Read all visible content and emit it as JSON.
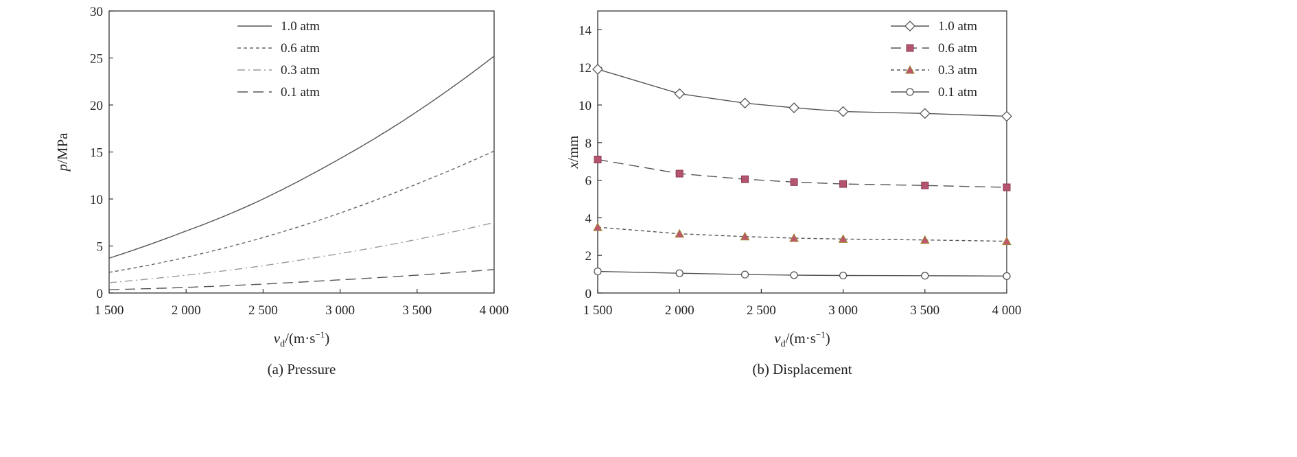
{
  "chart_data": [
    {
      "type": "line",
      "caption": "(a) Pressure",
      "xlabel_var": "v",
      "xlabel_sub": "d",
      "xlabel_unit": "/(m·s",
      "xlabel_sup": "−1",
      "xlabel_close": ")",
      "ylabel_var": "p",
      "ylabel_unit": "/MPa",
      "xlim": [
        1500,
        4000
      ],
      "ylim": [
        0,
        30
      ],
      "xticks": [
        1500,
        2000,
        2500,
        3000,
        3500,
        4000
      ],
      "xtick_labels": [
        "1 500",
        "2 000",
        "2 500",
        "3 000",
        "3 500",
        "4 000"
      ],
      "yticks": [
        0,
        5,
        10,
        15,
        20,
        25,
        30
      ],
      "ytick_labels": [
        "0",
        "5",
        "10",
        "15",
        "20",
        "25",
        "30"
      ],
      "legend_position": "top",
      "x": [
        1500,
        2000,
        2500,
        3000,
        3500,
        4000
      ],
      "series": [
        {
          "name": "1.0 atm",
          "values": [
            3.7,
            6.6,
            10.0,
            14.3,
            19.3,
            25.2
          ],
          "color": "#555555",
          "dash": "solid"
        },
        {
          "name": "0.6 atm",
          "values": [
            2.2,
            3.8,
            5.9,
            8.5,
            11.6,
            15.1
          ],
          "color": "#666666",
          "dash": "short-dash"
        },
        {
          "name": "0.3 atm",
          "values": [
            1.1,
            1.9,
            2.9,
            4.2,
            5.7,
            7.5
          ],
          "color": "#9a9a9a",
          "dash": "dash-dot"
        },
        {
          "name": "0.1 atm",
          "values": [
            0.35,
            0.6,
            0.95,
            1.4,
            1.9,
            2.5
          ],
          "color": "#555555",
          "dash": "long-dash"
        }
      ]
    },
    {
      "type": "line",
      "caption": "(b) Displacement",
      "xlabel_var": "v",
      "xlabel_sub": "d",
      "xlabel_unit": "/(m·s",
      "xlabel_sup": "−1",
      "xlabel_close": ")",
      "ylabel_var": "x",
      "ylabel_unit": "/mm",
      "xlim": [
        1500,
        4000
      ],
      "ylim": [
        0,
        15
      ],
      "xticks": [
        1500,
        2000,
        2500,
        3000,
        3500,
        4000
      ],
      "xtick_labels": [
        "1 500",
        "2 000",
        "2 500",
        "3 000",
        "3 500",
        "4 000"
      ],
      "yticks": [
        0,
        2,
        4,
        6,
        8,
        10,
        12,
        14
      ],
      "ytick_labels": [
        "0",
        "2",
        "4",
        "6",
        "8",
        "10",
        "12",
        "14"
      ],
      "legend_position": "top-right",
      "x": [
        1500,
        2000,
        2400,
        2700,
        3000,
        3500,
        4000
      ],
      "series": [
        {
          "name": "1.0 atm",
          "values": [
            11.9,
            10.6,
            10.1,
            9.85,
            9.65,
            9.55,
            9.4
          ],
          "color": "#555555",
          "dash": "solid",
          "marker": "diamond",
          "marker_fill": "#ffffff"
        },
        {
          "name": "0.6 atm",
          "values": [
            7.1,
            6.35,
            6.05,
            5.9,
            5.8,
            5.72,
            5.62
          ],
          "color": "#555555",
          "dash": "long-dash",
          "marker": "square",
          "marker_fill": "#b5546e"
        },
        {
          "name": "0.3 atm",
          "values": [
            3.5,
            3.15,
            3.0,
            2.92,
            2.87,
            2.82,
            2.75
          ],
          "color": "#555555",
          "dash": "short-dash",
          "marker": "triangle",
          "marker_fill": "#c0566e"
        },
        {
          "name": "0.1 atm",
          "values": [
            1.15,
            1.05,
            0.98,
            0.95,
            0.93,
            0.92,
            0.9
          ],
          "color": "#555555",
          "dash": "solid",
          "marker": "circle",
          "marker_fill": "#ffffff"
        }
      ]
    }
  ]
}
